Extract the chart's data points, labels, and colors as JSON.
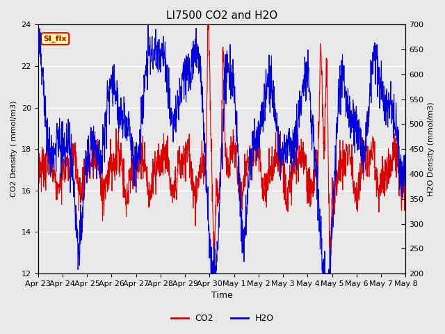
{
  "title": "LI7500 CO2 and H2O",
  "xlabel": "Time",
  "ylabel_left": "CO2 Density ( mmol/m3)",
  "ylabel_right": "H2O Density (mmol/m3)",
  "ylim_left": [
    12,
    24
  ],
  "ylim_right": [
    200,
    700
  ],
  "yticks_left": [
    12,
    14,
    16,
    18,
    20,
    22,
    24
  ],
  "yticks_right": [
    200,
    250,
    300,
    350,
    400,
    450,
    500,
    550,
    600,
    650,
    700
  ],
  "xtick_labels": [
    "Apr 23",
    "Apr 24",
    "Apr 25",
    "Apr 26",
    "Apr 27",
    "Apr 28",
    "Apr 29",
    "Apr 30",
    "May 1",
    "May 2",
    "May 3",
    "May 4",
    "May 5",
    "May 6",
    "May 7",
    "May 8"
  ],
  "co2_color": "#dd0000",
  "h2o_color": "#0000dd",
  "plot_bg_color": "#e8e8e8",
  "annotation_text": "SI_flx",
  "annotation_color": "#cc0000",
  "annotation_bg": "#ffff99",
  "legend_labels": [
    "CO2",
    "H2O"
  ],
  "grid_color": "#ffffff",
  "fig_bg": "#e8e8e8"
}
